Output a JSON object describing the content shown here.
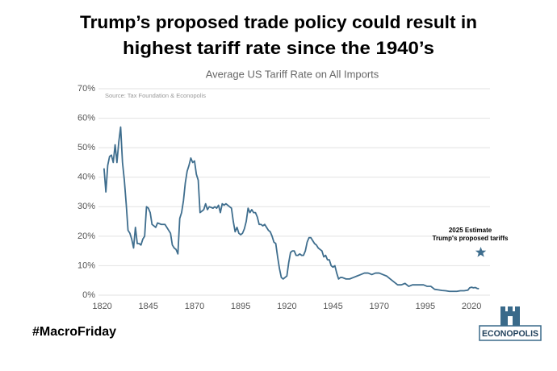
{
  "chart_data": {
    "type": "line",
    "title_lines": [
      "Trump’s proposed trade policy could result in",
      "highest tariff rate since the 1940’s"
    ],
    "subtitle": "Average US Tariff Rate on All Imports",
    "source": "Source: Tax Foundation & Econopolis",
    "x": [
      1821,
      1822,
      1823,
      1824,
      1825,
      1826,
      1827,
      1828,
      1829,
      1830,
      1831,
      1832,
      1833,
      1834,
      1835,
      1836,
      1837,
      1838,
      1839,
      1840,
      1841,
      1842,
      1843,
      1844,
      1845,
      1846,
      1847,
      1848,
      1849,
      1850,
      1852,
      1854,
      1856,
      1857,
      1858,
      1859,
      1860,
      1861,
      1862,
      1863,
      1864,
      1865,
      1866,
      1867,
      1868,
      1869,
      1870,
      1871,
      1872,
      1873,
      1874,
      1875,
      1876,
      1877,
      1878,
      1880,
      1881,
      1882,
      1883,
      1884,
      1885,
      1886,
      1887,
      1888,
      1889,
      1890,
      1891,
      1892,
      1893,
      1894,
      1895,
      1896,
      1897,
      1898,
      1899,
      1900,
      1901,
      1902,
      1903,
      1904,
      1905,
      1906,
      1907,
      1908,
      1909,
      1910,
      1911,
      1912,
      1913,
      1914,
      1915,
      1916,
      1917,
      1918,
      1919,
      1920,
      1921,
      1922,
      1923,
      1924,
      1925,
      1926,
      1927,
      1928,
      1929,
      1930,
      1931,
      1932,
      1933,
      1934,
      1935,
      1936,
      1937,
      1938,
      1939,
      1940,
      1941,
      1942,
      1943,
      1944,
      1945,
      1946,
      1947,
      1948,
      1949,
      1950,
      1952,
      1954,
      1956,
      1958,
      1960,
      1962,
      1964,
      1966,
      1968,
      1970,
      1972,
      1974,
      1976,
      1978,
      1980,
      1982,
      1984,
      1986,
      1988,
      1990,
      1992,
      1994,
      1996,
      1998,
      2000,
      2002,
      2004,
      2006,
      2008,
      2010,
      2012,
      2014,
      2016,
      2018,
      2019,
      2020,
      2021,
      2022,
      2023,
      2024
    ],
    "series": [
      {
        "color": "#3f6e8e",
        "values": [
          43,
          35,
          44,
          47,
          47.5,
          45,
          51,
          45,
          52,
          57,
          45,
          39,
          31,
          22,
          21,
          19,
          16,
          23,
          17.5,
          17.5,
          17,
          19,
          20,
          30,
          29.5,
          28,
          24,
          23.5,
          23,
          24.5,
          24,
          24,
          22,
          21,
          17,
          16,
          15.5,
          14,
          26,
          28,
          32,
          38,
          42,
          44,
          46.5,
          45,
          45.5,
          41,
          39,
          28,
          28.5,
          29,
          31,
          29,
          30,
          29.5,
          30,
          29.5,
          30.5,
          28,
          31,
          30.5,
          31,
          30.5,
          30,
          29.5,
          25,
          21.5,
          23,
          21,
          20.5,
          21,
          22.5,
          25,
          29.5,
          28,
          29,
          28,
          28,
          26.5,
          24,
          24,
          23.5,
          24,
          23,
          22,
          21.5,
          20,
          18,
          17.5,
          13,
          9,
          6,
          5.5,
          6,
          6.5,
          11,
          14.5,
          15,
          15,
          13.5,
          13.5,
          14,
          13.5,
          13.5,
          15,
          18,
          19.5,
          19.5,
          18.5,
          17.5,
          17,
          16,
          15.5,
          15,
          13,
          13.5,
          12,
          12,
          10,
          9.5,
          10,
          7.5,
          5.5,
          6,
          6,
          5.5,
          5.5,
          6,
          6.5,
          7,
          7.5,
          7.5,
          7,
          7.5,
          7.5,
          7,
          6.5,
          5.5,
          4.5,
          3.5,
          3.5,
          4,
          3,
          3.5,
          3.5,
          3.5,
          3.5,
          3,
          3,
          2,
          1.8,
          1.6,
          1.5,
          1.3,
          1.3,
          1.3,
          1.5,
          1.5,
          1.7,
          2.5,
          2.7,
          2.5,
          2.6,
          2.3,
          2.2
        ]
      }
    ],
    "estimate": {
      "x": 2025,
      "value": 14.5,
      "label": "2025 Estimate",
      "sublabel": "Trump's proposed tariffs",
      "color": "#3f6e8e"
    },
    "xlim": [
      1818,
      2030
    ],
    "xticks": [
      1820,
      1845,
      1870,
      1895,
      1920,
      1945,
      1970,
      1995,
      2020
    ],
    "ylim": [
      0,
      70
    ],
    "yticks": [
      {
        "value": 0,
        "label": "0%"
      },
      {
        "value": 10,
        "label": "10%"
      },
      {
        "value": 20,
        "label": "20%"
      },
      {
        "value": 30,
        "label": "30%"
      },
      {
        "value": 40,
        "label": "40%"
      },
      {
        "value": 50,
        "label": "50%"
      },
      {
        "value": 60,
        "label": "60%"
      },
      {
        "value": 70,
        "label": "70%"
      }
    ],
    "grid": true,
    "hashtag": "#MacroFriday",
    "logo": "ECONOPOLIS"
  }
}
